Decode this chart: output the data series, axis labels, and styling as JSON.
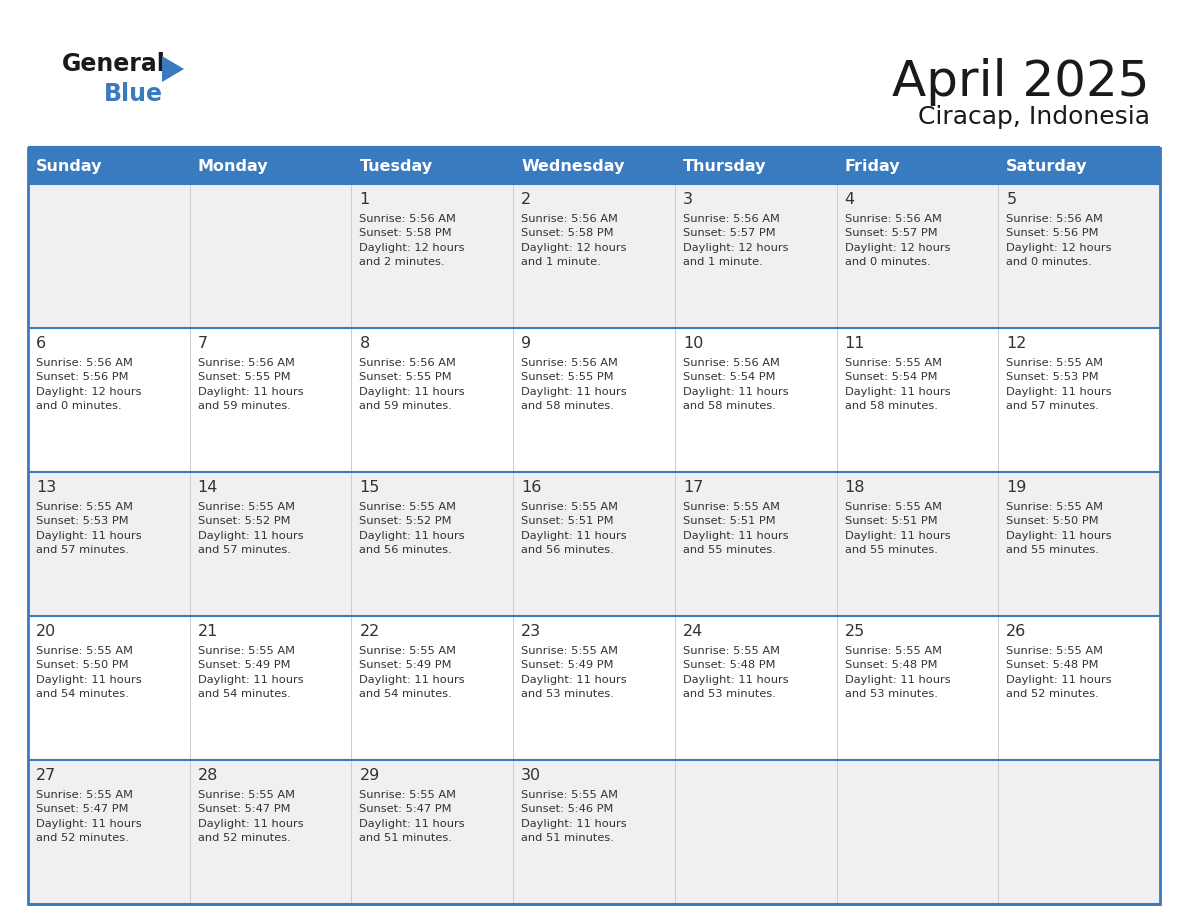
{
  "title": "April 2025",
  "subtitle": "Ciracap, Indonesia",
  "header_bg": "#3a7abf",
  "header_text_color": "#ffffff",
  "cell_bg_odd": "#f0f0f0",
  "cell_bg_even": "#ffffff",
  "border_color": "#3a7abf",
  "text_color": "#333333",
  "days_of_week": [
    "Sunday",
    "Monday",
    "Tuesday",
    "Wednesday",
    "Thursday",
    "Friday",
    "Saturday"
  ],
  "calendar_data": [
    [
      {
        "day": "",
        "info": ""
      },
      {
        "day": "",
        "info": ""
      },
      {
        "day": "1",
        "info": "Sunrise: 5:56 AM\nSunset: 5:58 PM\nDaylight: 12 hours\nand 2 minutes."
      },
      {
        "day": "2",
        "info": "Sunrise: 5:56 AM\nSunset: 5:58 PM\nDaylight: 12 hours\nand 1 minute."
      },
      {
        "day": "3",
        "info": "Sunrise: 5:56 AM\nSunset: 5:57 PM\nDaylight: 12 hours\nand 1 minute."
      },
      {
        "day": "4",
        "info": "Sunrise: 5:56 AM\nSunset: 5:57 PM\nDaylight: 12 hours\nand 0 minutes."
      },
      {
        "day": "5",
        "info": "Sunrise: 5:56 AM\nSunset: 5:56 PM\nDaylight: 12 hours\nand 0 minutes."
      }
    ],
    [
      {
        "day": "6",
        "info": "Sunrise: 5:56 AM\nSunset: 5:56 PM\nDaylight: 12 hours\nand 0 minutes."
      },
      {
        "day": "7",
        "info": "Sunrise: 5:56 AM\nSunset: 5:55 PM\nDaylight: 11 hours\nand 59 minutes."
      },
      {
        "day": "8",
        "info": "Sunrise: 5:56 AM\nSunset: 5:55 PM\nDaylight: 11 hours\nand 59 minutes."
      },
      {
        "day": "9",
        "info": "Sunrise: 5:56 AM\nSunset: 5:55 PM\nDaylight: 11 hours\nand 58 minutes."
      },
      {
        "day": "10",
        "info": "Sunrise: 5:56 AM\nSunset: 5:54 PM\nDaylight: 11 hours\nand 58 minutes."
      },
      {
        "day": "11",
        "info": "Sunrise: 5:55 AM\nSunset: 5:54 PM\nDaylight: 11 hours\nand 58 minutes."
      },
      {
        "day": "12",
        "info": "Sunrise: 5:55 AM\nSunset: 5:53 PM\nDaylight: 11 hours\nand 57 minutes."
      }
    ],
    [
      {
        "day": "13",
        "info": "Sunrise: 5:55 AM\nSunset: 5:53 PM\nDaylight: 11 hours\nand 57 minutes."
      },
      {
        "day": "14",
        "info": "Sunrise: 5:55 AM\nSunset: 5:52 PM\nDaylight: 11 hours\nand 57 minutes."
      },
      {
        "day": "15",
        "info": "Sunrise: 5:55 AM\nSunset: 5:52 PM\nDaylight: 11 hours\nand 56 minutes."
      },
      {
        "day": "16",
        "info": "Sunrise: 5:55 AM\nSunset: 5:51 PM\nDaylight: 11 hours\nand 56 minutes."
      },
      {
        "day": "17",
        "info": "Sunrise: 5:55 AM\nSunset: 5:51 PM\nDaylight: 11 hours\nand 55 minutes."
      },
      {
        "day": "18",
        "info": "Sunrise: 5:55 AM\nSunset: 5:51 PM\nDaylight: 11 hours\nand 55 minutes."
      },
      {
        "day": "19",
        "info": "Sunrise: 5:55 AM\nSunset: 5:50 PM\nDaylight: 11 hours\nand 55 minutes."
      }
    ],
    [
      {
        "day": "20",
        "info": "Sunrise: 5:55 AM\nSunset: 5:50 PM\nDaylight: 11 hours\nand 54 minutes."
      },
      {
        "day": "21",
        "info": "Sunrise: 5:55 AM\nSunset: 5:49 PM\nDaylight: 11 hours\nand 54 minutes."
      },
      {
        "day": "22",
        "info": "Sunrise: 5:55 AM\nSunset: 5:49 PM\nDaylight: 11 hours\nand 54 minutes."
      },
      {
        "day": "23",
        "info": "Sunrise: 5:55 AM\nSunset: 5:49 PM\nDaylight: 11 hours\nand 53 minutes."
      },
      {
        "day": "24",
        "info": "Sunrise: 5:55 AM\nSunset: 5:48 PM\nDaylight: 11 hours\nand 53 minutes."
      },
      {
        "day": "25",
        "info": "Sunrise: 5:55 AM\nSunset: 5:48 PM\nDaylight: 11 hours\nand 53 minutes."
      },
      {
        "day": "26",
        "info": "Sunrise: 5:55 AM\nSunset: 5:48 PM\nDaylight: 11 hours\nand 52 minutes."
      }
    ],
    [
      {
        "day": "27",
        "info": "Sunrise: 5:55 AM\nSunset: 5:47 PM\nDaylight: 11 hours\nand 52 minutes."
      },
      {
        "day": "28",
        "info": "Sunrise: 5:55 AM\nSunset: 5:47 PM\nDaylight: 11 hours\nand 52 minutes."
      },
      {
        "day": "29",
        "info": "Sunrise: 5:55 AM\nSunset: 5:47 PM\nDaylight: 11 hours\nand 51 minutes."
      },
      {
        "day": "30",
        "info": "Sunrise: 5:55 AM\nSunset: 5:46 PM\nDaylight: 11 hours\nand 51 minutes."
      },
      {
        "day": "",
        "info": ""
      },
      {
        "day": "",
        "info": ""
      },
      {
        "day": "",
        "info": ""
      }
    ]
  ],
  "logo_general_color": "#1a1a1a",
  "logo_blue_color": "#3a7abf",
  "logo_triangle_color": "#3a7abf"
}
